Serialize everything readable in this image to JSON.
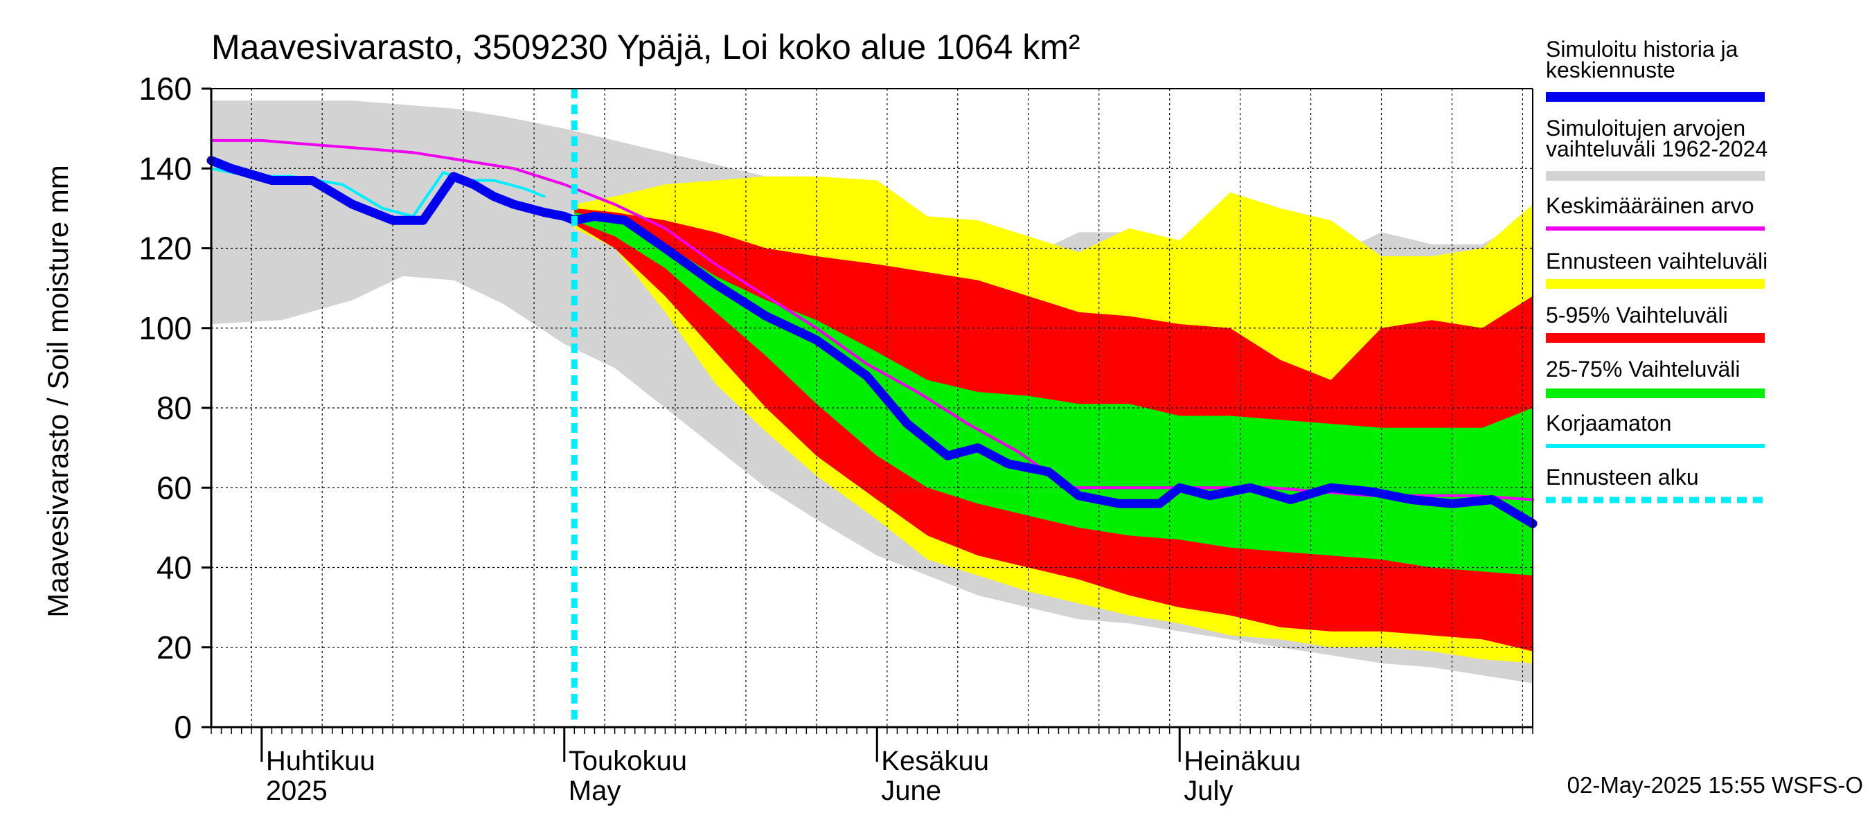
{
  "chart_data": {
    "type": "area",
    "title": "Maavesivarasto, 3509230 Ypäjä, Loi koko alue 1064 km²",
    "ylabel": "Maavesivarasto / Soil moisture   mm",
    "ylim": [
      0,
      160
    ],
    "y_ticks": [
      "0",
      "20",
      "40",
      "60",
      "80",
      "100",
      "120",
      "140",
      "160"
    ],
    "xlim": [
      "2025-03-27",
      "2025-08-05"
    ],
    "month_labels": [
      {
        "fi": "Huhtikuu",
        "en": "2025",
        "date": "2025-04-01"
      },
      {
        "fi": "Toukokuu",
        "en": "May",
        "date": "2025-05-01"
      },
      {
        "fi": "Kesäkuu",
        "en": "June",
        "date": "2025-06-01"
      },
      {
        "fi": "Heinäkuu",
        "en": "July",
        "date": "2025-07-01"
      }
    ],
    "grid": true,
    "legend_position": "right",
    "forecast_start": "2025-05-02",
    "footer": "02-May-2025 15:55 WSFS-O",
    "colors": {
      "history_range": "#d3d3d3",
      "forecast_range": "#ffff00",
      "p5_95": "#ff0000",
      "p25_75": "#00ee00",
      "median": "#0000ee",
      "mean": "#ee00ee",
      "uncorrected": "#00eeff",
      "forecast_start": "#00eeff"
    },
    "legend": [
      {
        "label": "Simuloitu historia ja keskiennuste",
        "lines": [
          "Simuloitu historia ja",
          "keskiennuste"
        ],
        "color": "#0000ee",
        "style": "thick"
      },
      {
        "label": "Simuloitujen arvojen vaihteluväli 1962-2024",
        "lines": [
          "Simuloitujen arvojen",
          "vaihteluväli 1962-2024"
        ],
        "color": "#d3d3d3",
        "style": "band"
      },
      {
        "label": "Keskimääräinen arvo",
        "lines": [
          "Keskimääräinen arvo"
        ],
        "color": "#ee00ee",
        "style": "line"
      },
      {
        "label": "Ennusteen vaihteluväli",
        "lines": [
          "Ennusteen vaihteluväli"
        ],
        "color": "#ffff00",
        "style": "band"
      },
      {
        "label": "5-95% Vaihteluväli",
        "lines": [
          "5-95% Vaihteluväli"
        ],
        "color": "#ff0000",
        "style": "band"
      },
      {
        "label": "25-75% Vaihteluväli",
        "lines": [
          "25-75% Vaihteluväli"
        ],
        "color": "#00ee00",
        "style": "band"
      },
      {
        "label": "Korjaamaton",
        "lines": [
          "Korjaamaton"
        ],
        "color": "#00eeff",
        "style": "line"
      },
      {
        "label": "Ennusteen alku",
        "lines": [
          "Ennusteen alku"
        ],
        "color": "#00eeff",
        "style": "dashed"
      }
    ],
    "bands": {
      "history_range": {
        "x": [
          "2025-03-27",
          "2025-04-03",
          "2025-04-10",
          "2025-04-15",
          "2025-04-20",
          "2025-04-25",
          "2025-05-01",
          "2025-05-06",
          "2025-05-11",
          "2025-05-16",
          "2025-05-21",
          "2025-05-26",
          "2025-06-01",
          "2025-06-06",
          "2025-06-11",
          "2025-06-16",
          "2025-06-21",
          "2025-06-26",
          "2025-07-01",
          "2025-07-06",
          "2025-07-11",
          "2025-07-16",
          "2025-07-21",
          "2025-07-26",
          "2025-07-31",
          "2025-08-05"
        ],
        "upper": [
          157,
          157,
          157,
          156,
          155,
          153,
          150,
          147,
          144,
          141,
          138,
          134,
          128,
          124,
          120,
          118,
          124,
          124,
          122,
          120,
          120,
          118,
          124,
          121,
          121,
          128
        ],
        "lower": [
          101,
          102,
          107,
          113,
          112,
          106,
          96,
          90,
          80,
          70,
          60,
          52,
          43,
          38,
          33,
          30,
          27,
          26,
          24,
          22,
          20,
          18,
          16,
          15,
          13,
          11
        ]
      },
      "forecast_range": {
        "x": [
          "2025-05-02",
          "2025-05-06",
          "2025-05-11",
          "2025-05-16",
          "2025-05-21",
          "2025-05-26",
          "2025-06-01",
          "2025-06-06",
          "2025-06-11",
          "2025-06-16",
          "2025-06-21",
          "2025-06-26",
          "2025-07-01",
          "2025-07-06",
          "2025-07-11",
          "2025-07-16",
          "2025-07-21",
          "2025-07-26",
          "2025-07-31",
          "2025-08-05"
        ],
        "upper": [
          131,
          133,
          136,
          137,
          138,
          138,
          137,
          128,
          127,
          123,
          119,
          125,
          122,
          134,
          130,
          127,
          118,
          118,
          120,
          131
        ],
        "lower": [
          125,
          120,
          104,
          86,
          74,
          63,
          52,
          42,
          38,
          34,
          31,
          28,
          26,
          23,
          22,
          20,
          20,
          19,
          17,
          16
        ]
      },
      "p5_95": {
        "x": [
          "2025-05-02",
          "2025-05-06",
          "2025-05-11",
          "2025-05-16",
          "2025-05-21",
          "2025-05-26",
          "2025-06-01",
          "2025-06-06",
          "2025-06-11",
          "2025-06-16",
          "2025-06-21",
          "2025-06-26",
          "2025-07-01",
          "2025-07-06",
          "2025-07-11",
          "2025-07-16",
          "2025-07-21",
          "2025-07-26",
          "2025-07-31",
          "2025-08-05"
        ],
        "upper": [
          130,
          129,
          127,
          124,
          120,
          118,
          116,
          114,
          112,
          108,
          104,
          103,
          101,
          100,
          92,
          87,
          100,
          102,
          100,
          108
        ],
        "lower": [
          126,
          120,
          108,
          94,
          80,
          68,
          57,
          48,
          43,
          40,
          37,
          33,
          30,
          28,
          25,
          24,
          24,
          23,
          22,
          19
        ]
      },
      "p25_75": {
        "x": [
          "2025-05-02",
          "2025-05-06",
          "2025-05-11",
          "2025-05-16",
          "2025-05-21",
          "2025-05-26",
          "2025-06-01",
          "2025-06-06",
          "2025-06-11",
          "2025-06-16",
          "2025-06-21",
          "2025-06-26",
          "2025-07-01",
          "2025-07-06",
          "2025-07-11",
          "2025-07-16",
          "2025-07-21",
          "2025-07-26",
          "2025-07-31",
          "2025-08-05"
        ],
        "upper": [
          129,
          127,
          121,
          113,
          107,
          102,
          94,
          87,
          84,
          83,
          81,
          81,
          78,
          78,
          77,
          76,
          75,
          75,
          75,
          80
        ],
        "lower": [
          127,
          123,
          115,
          104,
          93,
          81,
          68,
          60,
          56,
          53,
          50,
          48,
          47,
          45,
          44,
          43,
          42,
          40,
          39,
          38
        ]
      }
    },
    "series": [
      {
        "name": "Simuloitu historia ja keskiennuste",
        "color": "#0000ee",
        "x": [
          "2025-03-27",
          "2025-03-29",
          "2025-04-02",
          "2025-04-06",
          "2025-04-10",
          "2025-04-14",
          "2025-04-17",
          "2025-04-20",
          "2025-04-22",
          "2025-04-24",
          "2025-04-26",
          "2025-04-29",
          "2025-05-01",
          "2025-05-02",
          "2025-05-04",
          "2025-05-07",
          "2025-05-11",
          "2025-05-16",
          "2025-05-21",
          "2025-05-26",
          "2025-05-31",
          "2025-06-04",
          "2025-06-08",
          "2025-06-11",
          "2025-06-14",
          "2025-06-18",
          "2025-06-21",
          "2025-06-25",
          "2025-06-29",
          "2025-07-01",
          "2025-07-04",
          "2025-07-08",
          "2025-07-12",
          "2025-07-16",
          "2025-07-20",
          "2025-07-24",
          "2025-07-28",
          "2025-08-01",
          "2025-08-05"
        ],
        "values": [
          142,
          140,
          137,
          137,
          131,
          127,
          127,
          138,
          136,
          133,
          131,
          129,
          128,
          127,
          128,
          127,
          120,
          111,
          103,
          97,
          88,
          76,
          68,
          70,
          66,
          64,
          58,
          56,
          56,
          60,
          58,
          60,
          57,
          60,
          59,
          57,
          56,
          57,
          51
        ]
      },
      {
        "name": "Keskimääräinen arvo",
        "color": "#ee00ee",
        "x": [
          "2025-03-27",
          "2025-04-01",
          "2025-04-06",
          "2025-04-11",
          "2025-04-16",
          "2025-04-21",
          "2025-04-26",
          "2025-05-01",
          "2025-05-06",
          "2025-05-11",
          "2025-05-16",
          "2025-05-21",
          "2025-05-26",
          "2025-05-31",
          "2025-06-05",
          "2025-06-10",
          "2025-06-15",
          "2025-06-20",
          "2025-06-25",
          "2025-06-30",
          "2025-07-05",
          "2025-07-10",
          "2025-07-15",
          "2025-07-20",
          "2025-07-25",
          "2025-07-30",
          "2025-08-05"
        ],
        "values": [
          147,
          147,
          146,
          145,
          144,
          142,
          140,
          136,
          131,
          125,
          116,
          108,
          100,
          91,
          84,
          76,
          69,
          60,
          60,
          60,
          60,
          60,
          59,
          58,
          58,
          58,
          57
        ]
      },
      {
        "name": "Korjaamaton",
        "color": "#00eeff",
        "x": [
          "2025-03-27",
          "2025-03-31",
          "2025-04-04",
          "2025-04-09",
          "2025-04-13",
          "2025-04-16",
          "2025-04-19",
          "2025-04-21",
          "2025-04-24",
          "2025-04-27",
          "2025-04-29"
        ],
        "values": [
          140,
          138,
          138,
          136,
          130,
          128,
          139,
          137,
          137,
          135,
          133
        ]
      }
    ]
  }
}
